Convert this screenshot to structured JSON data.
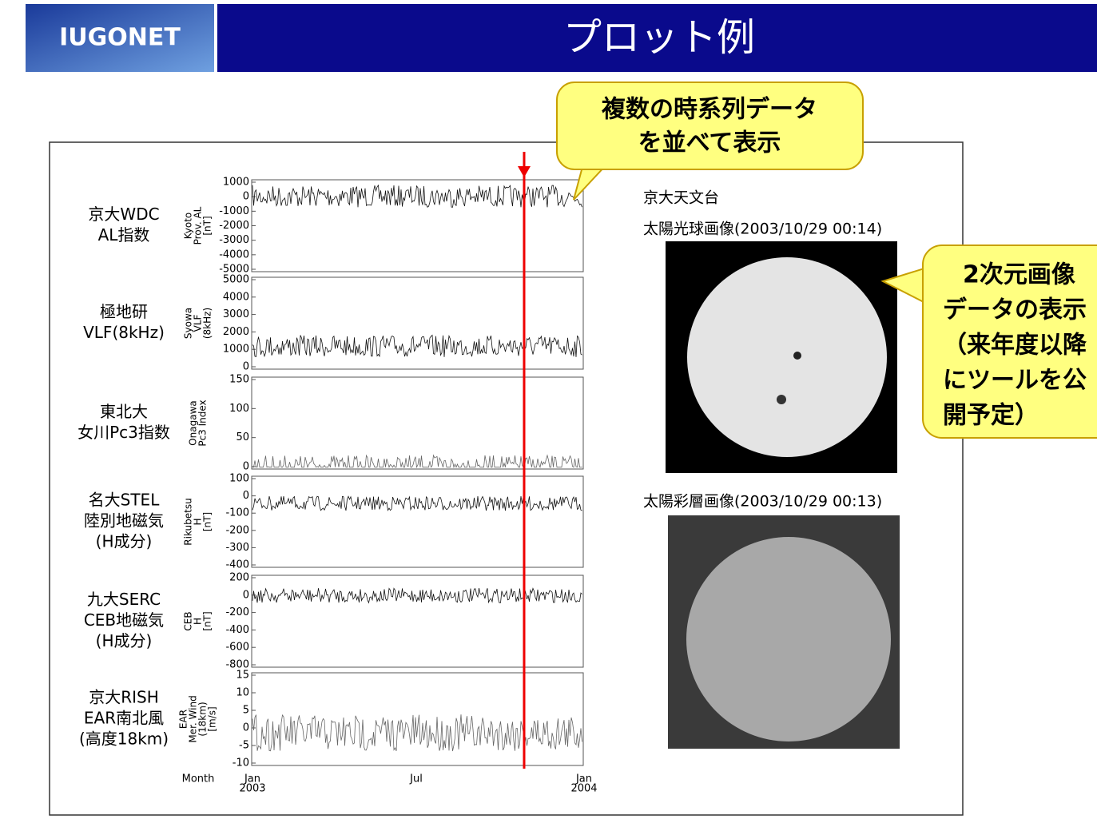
{
  "header": {
    "logo": "IUGONET",
    "title": "プロット例"
  },
  "callouts": [
    {
      "lines": [
        "複数の時系列データ",
        "を並べて表示"
      ]
    },
    {
      "lines": [
        "2次元画像",
        "データの表示",
        "（来年度以降",
        "にツールを公",
        "開予定）"
      ]
    }
  ],
  "panels": [
    {
      "label": [
        "京大WDC",
        "AL指数"
      ],
      "axis_label": [
        "Kyoto",
        "Prov. AL",
        "[nT]"
      ],
      "ticks": [
        "1000",
        "0",
        "-1000",
        "-2000",
        "-3000",
        "-4000",
        "-5000"
      ]
    },
    {
      "label": [
        "極地研",
        "VLF(8kHz)"
      ],
      "axis_label": [
        "Syowa",
        "VLF",
        "(8kHz)"
      ],
      "ticks": [
        "5000",
        "4000",
        "3000",
        "2000",
        "1000",
        "0"
      ]
    },
    {
      "label": [
        "東北大",
        "女川Pc3指数"
      ],
      "axis_label": [
        "Onagawa",
        "Pc3 Index"
      ],
      "ticks": [
        "150",
        "100",
        "50",
        "0"
      ]
    },
    {
      "label": [
        "名大STEL",
        "陸別地磁気",
        "(H成分)"
      ],
      "axis_label": [
        "Rikubetsu",
        "H",
        "[nT]"
      ],
      "ticks": [
        "100",
        "0",
        "-100",
        "-200",
        "-300",
        "-400"
      ]
    },
    {
      "label": [
        "九大SERC",
        "CEB地磁気",
        "(H成分)"
      ],
      "axis_label": [
        "CEB",
        "H",
        "[nT]"
      ],
      "ticks": [
        "200",
        "0",
        "-200",
        "-400",
        "-600",
        "-800"
      ]
    },
    {
      "label": [
        "京大RISH",
        "EAR南北風",
        "(高度18km)"
      ],
      "axis_label": [
        "EAR",
        "Mer. Wind",
        "(18km)",
        "[m/s]"
      ],
      "ticks": [
        "15",
        "10",
        "5",
        "0",
        "-5",
        "-10"
      ]
    }
  ],
  "x_axis": {
    "label": "Month",
    "ticks": [
      {
        "lines": [
          "Jan",
          "2003"
        ]
      },
      {
        "lines": [
          "Jul"
        ]
      },
      {
        "lines": [
          "Jan",
          "2004"
        ]
      }
    ]
  },
  "observatory": "京大天文台",
  "images": [
    {
      "caption": "太陽光球画像(2003/10/29 00:14)"
    },
    {
      "caption": "太陽彩層画像(2003/10/29 00:13)"
    }
  ]
}
